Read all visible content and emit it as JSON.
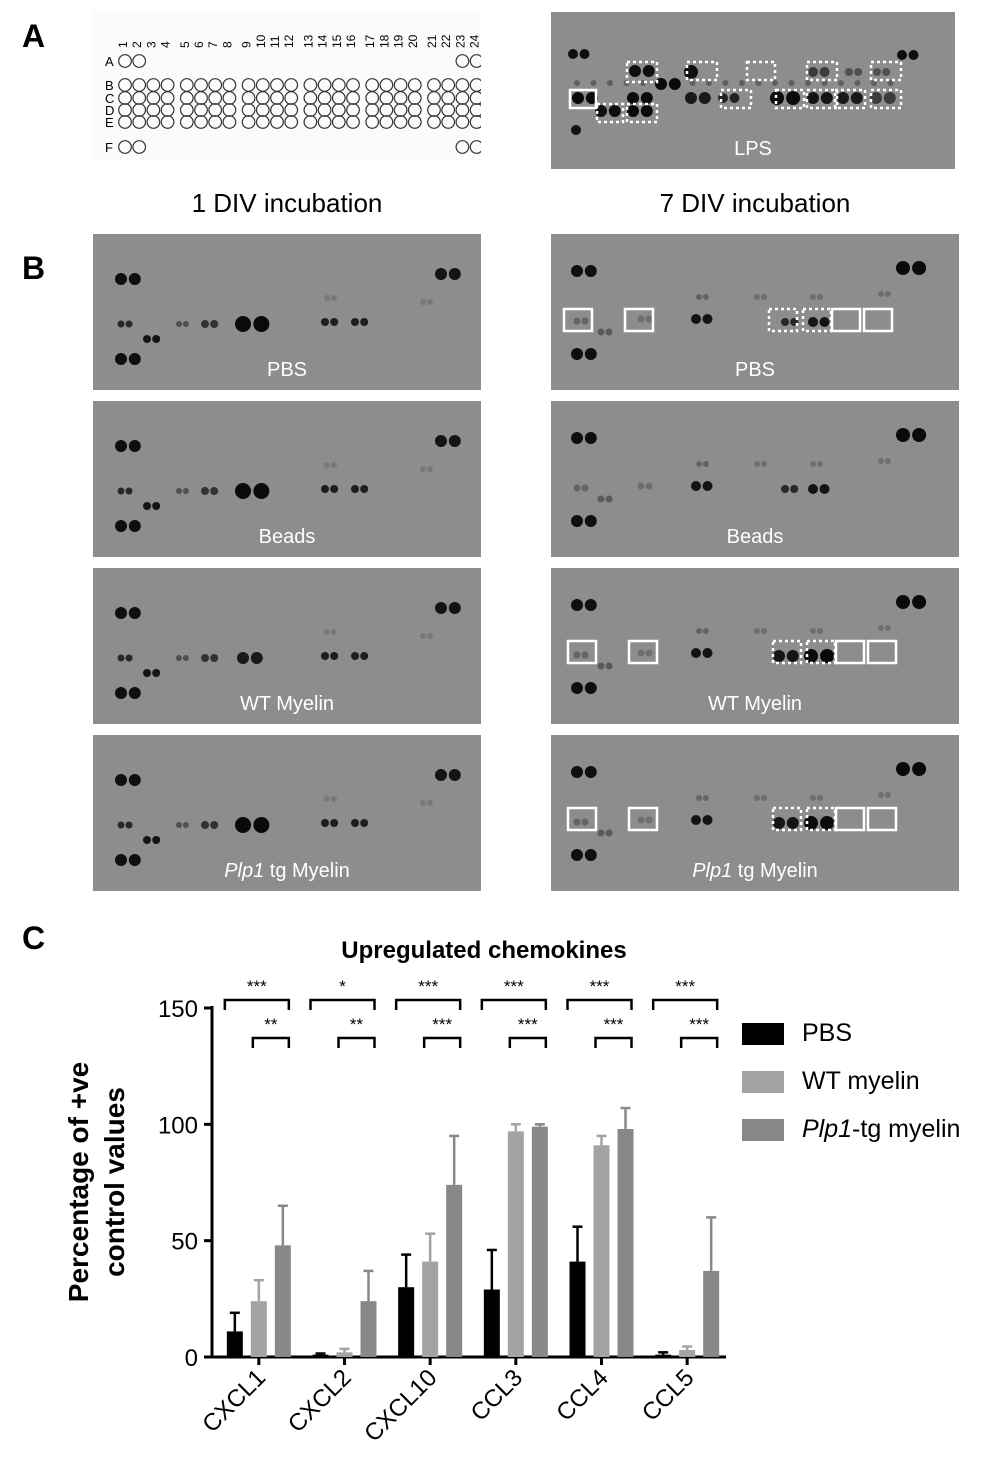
{
  "panels": {
    "a": "A",
    "b": "B",
    "c": "C"
  },
  "array_layout": {
    "row_labels": [
      "A",
      "B",
      "C",
      "D",
      "E",
      "F"
    ],
    "column_labels": [
      "1",
      "2",
      "3",
      "4",
      "5",
      "6",
      "7",
      "8",
      "9",
      "10",
      "11",
      "12",
      "13",
      "14",
      "15",
      "16",
      "17",
      "18",
      "19",
      "20",
      "21",
      "22",
      "23",
      "24"
    ]
  },
  "lps_blot_label": "LPS",
  "column_titles": [
    "1 DIV incubation",
    "7 DIV incubation"
  ],
  "blots": [
    {
      "label": "PBS"
    },
    {
      "label": "PBS"
    },
    {
      "label": "Beads"
    },
    {
      "label": "Beads"
    },
    {
      "label": "WT Myelin"
    },
    {
      "label": "WT Myelin"
    },
    {
      "label_italic": "Plp1",
      "label_rest": " tg Myelin"
    },
    {
      "label_italic": "Plp1",
      "label_rest": " tg Myelin"
    }
  ],
  "chart_data": {
    "type": "bar",
    "title": "Upregulated chemokines",
    "ylabel_lines": [
      "Percentage of +ve",
      "control values"
    ],
    "ylim": [
      0,
      150
    ],
    "yticks": [
      0,
      50,
      100,
      150
    ],
    "categories": [
      "CXCL1",
      "CXCL2",
      "CXCL10",
      "CCL3",
      "CCL4",
      "CCL5"
    ],
    "series": [
      {
        "name": "PBS",
        "color": "#000000",
        "values": [
          11,
          1,
          30,
          29,
          41,
          1
        ],
        "errors": [
          8,
          0.5,
          14,
          17,
          15,
          1
        ]
      },
      {
        "name": "WT myelin",
        "color": "#a3a3a5",
        "values": [
          24,
          2,
          41,
          97,
          91,
          3
        ],
        "errors": [
          9,
          1.5,
          12,
          3,
          4,
          1.5
        ]
      },
      {
        "name_italic": "Plp1",
        "name_rest": "-tg myelin",
        "color": "#888888",
        "values": [
          48,
          24,
          74,
          99,
          98,
          37
        ],
        "errors": [
          17,
          13,
          21,
          1,
          9,
          23
        ]
      }
    ],
    "significance": [
      {
        "category": 0,
        "wide": "***",
        "narrow": "**"
      },
      {
        "category": 1,
        "wide": "*",
        "narrow": "**"
      },
      {
        "category": 2,
        "wide": "***",
        "narrow": "***"
      },
      {
        "category": 3,
        "wide": "***",
        "narrow": "***"
      },
      {
        "category": 4,
        "wide": "***",
        "narrow": "***"
      },
      {
        "category": 5,
        "wide": "***",
        "narrow": "***"
      }
    ],
    "grid": false,
    "legend": "right"
  }
}
